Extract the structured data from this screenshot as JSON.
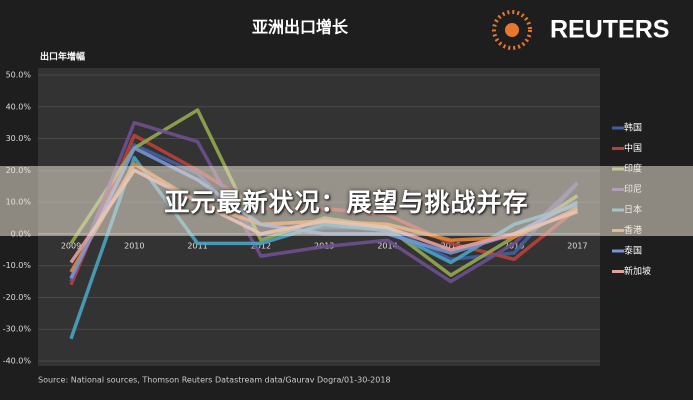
{
  "chart_data": {
    "type": "line",
    "title": "亚洲出口增长",
    "y_label": "出口年增幅",
    "source": "Source: National sources, Thomson Reuters Datastream data/Gaurav Dogra/01-30-2018",
    "categories": [
      "2009",
      "2010",
      "2011",
      "2012",
      "2013",
      "2014",
      "2015",
      "2016",
      "2017"
    ],
    "ylim": [
      -40,
      50
    ],
    "yticks": [
      {
        "value": -40,
        "label": "-40.0%"
      },
      {
        "value": -30,
        "label": "-30.0%"
      },
      {
        "value": -20,
        "label": "-20.0%"
      },
      {
        "value": -10,
        "label": "-10.0%"
      },
      {
        "value": 0,
        "label": "0.0%"
      },
      {
        "value": 10,
        "label": "10.0%"
      },
      {
        "value": 20,
        "label": "20.0%"
      },
      {
        "value": 30,
        "label": "30.0%"
      },
      {
        "value": 40,
        "label": "40.0%"
      },
      {
        "value": 50,
        "label": "50.0%"
      }
    ],
    "grid": true,
    "series": [
      {
        "name": "韩国",
        "color": "#3f5f9e",
        "values": [
          -14,
          28,
          19,
          -1,
          2,
          2,
          -8,
          -6,
          16
        ]
      },
      {
        "name": "中国",
        "color": "#b8403a",
        "values": [
          -16,
          31,
          20,
          8,
          8,
          6,
          -3,
          -8,
          8
        ]
      },
      {
        "name": "印度",
        "color": "#93a84c",
        "values": [
          -3,
          27,
          39,
          -2,
          5,
          2,
          -13,
          -1,
          12
        ]
      },
      {
        "name": "印尼",
        "color": "#6e4f8e",
        "values": [
          -15,
          35,
          29,
          -7,
          -4,
          -2,
          -15,
          -3,
          16
        ]
      },
      {
        "name": "日本",
        "color": "#4aa3c2",
        "values": [
          -33,
          24,
          -3,
          -3,
          3,
          1,
          -9,
          3,
          9
        ]
      },
      {
        "name": "香港",
        "color": "#e0873a",
        "values": [
          -12,
          22,
          10,
          3,
          4,
          3,
          -2,
          -1,
          8
        ]
      },
      {
        "name": "泰国",
        "color": "#7894d4",
        "values": [
          -14,
          27,
          17,
          3,
          0,
          0,
          -6,
          0,
          10
        ]
      },
      {
        "name": "新加坡",
        "color": "#e4a09a",
        "values": [
          -9,
          20,
          10,
          0,
          4,
          2,
          -5,
          0,
          7
        ]
      }
    ]
  },
  "logo_text": "REUTERS",
  "overlay_title": "亚元最新状况：展望与挑战并存"
}
